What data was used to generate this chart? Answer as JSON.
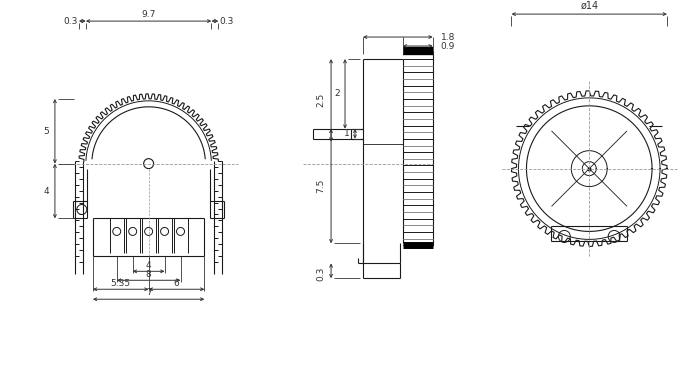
{
  "bg_color": "#ffffff",
  "line_color": "#1a1a1a",
  "dim_color": "#333333",
  "dash_color": "#999999",
  "figsize": [
    7.0,
    3.71
  ],
  "dpi": 100,
  "annotations": {
    "top_left_dim": "0.3",
    "top_center_dim": "9.7",
    "top_right_dim": "0.3",
    "left_dim_top": "5",
    "left_dim_bot": "4",
    "bot_dim1": "4",
    "bot_dim2": "8",
    "bot_dim3": "5.35",
    "bot_dim4": "6",
    "bot_dim5": "7",
    "side_top_dim": "1.8",
    "side_top_dim2": "0.9",
    "side_left_dim1": "2",
    "side_left_dim2": "2.5",
    "side_left_dim3": "1",
    "side_left_dim4": "7.5",
    "side_bot_dim": "0.3",
    "right_dim": "ø14"
  }
}
